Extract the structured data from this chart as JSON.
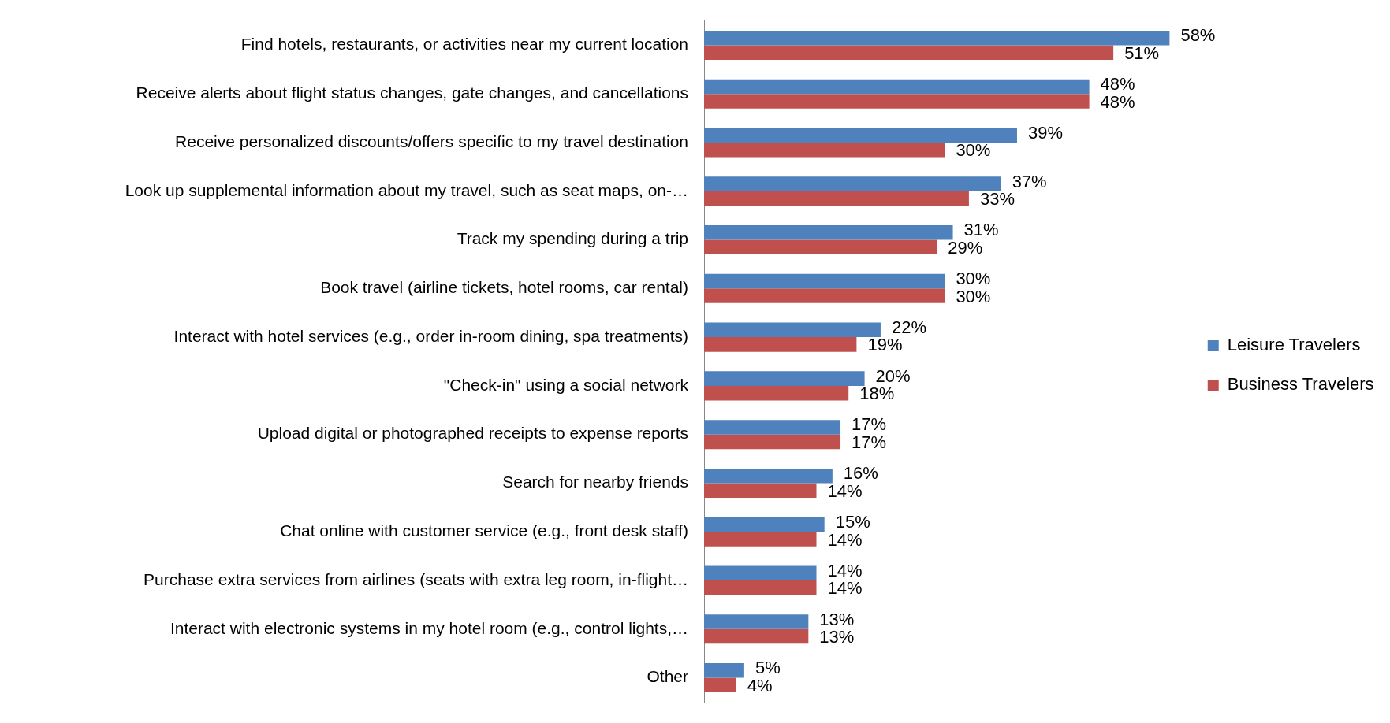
{
  "chart_data": {
    "type": "bar",
    "orientation": "horizontal",
    "categories": [
      "Find hotels, restaurants, or activities near my current location",
      "Receive alerts about flight status changes, gate changes, and cancellations",
      "Receive personalized discounts/offers specific to my travel destination",
      "Look up supplemental information about my travel, such as seat maps, on-…",
      "Track my spending during a trip",
      "Book travel (airline tickets, hotel rooms, car rental)",
      "Interact with hotel services (e.g., order in-room dining, spa treatments)",
      "\"Check-in\" using a social network",
      "Upload digital or photographed receipts to expense reports",
      "Search for nearby friends",
      "Chat online with customer service (e.g., front desk staff)",
      "Purchase extra services from airlines (seats with extra leg room, in-flight…",
      "Interact with electronic systems in my hotel room (e.g., control lights,…",
      "Other"
    ],
    "series": [
      {
        "name": "Leisure Travelers",
        "color": "#4f81bd",
        "values": [
          58,
          48,
          39,
          37,
          31,
          30,
          22,
          20,
          17,
          16,
          15,
          14,
          13,
          5
        ],
        "value_labels": [
          "58%",
          "48%",
          "39%",
          "37%",
          "31%",
          "30%",
          "22%",
          "20%",
          "17%",
          "16%",
          "15%",
          "14%",
          "13%",
          "5%"
        ]
      },
      {
        "name": "Business Travelers",
        "color": "#c0504d",
        "values": [
          51,
          48,
          30,
          33,
          29,
          30,
          19,
          18,
          17,
          14,
          14,
          14,
          13,
          4
        ],
        "value_labels": [
          "51%",
          "48%",
          "30%",
          "33%",
          "29%",
          "30%",
          "19%",
          "18%",
          "17%",
          "14%",
          "14%",
          "14%",
          "13%",
          "4%"
        ]
      }
    ],
    "legend": "right",
    "grid": false
  }
}
